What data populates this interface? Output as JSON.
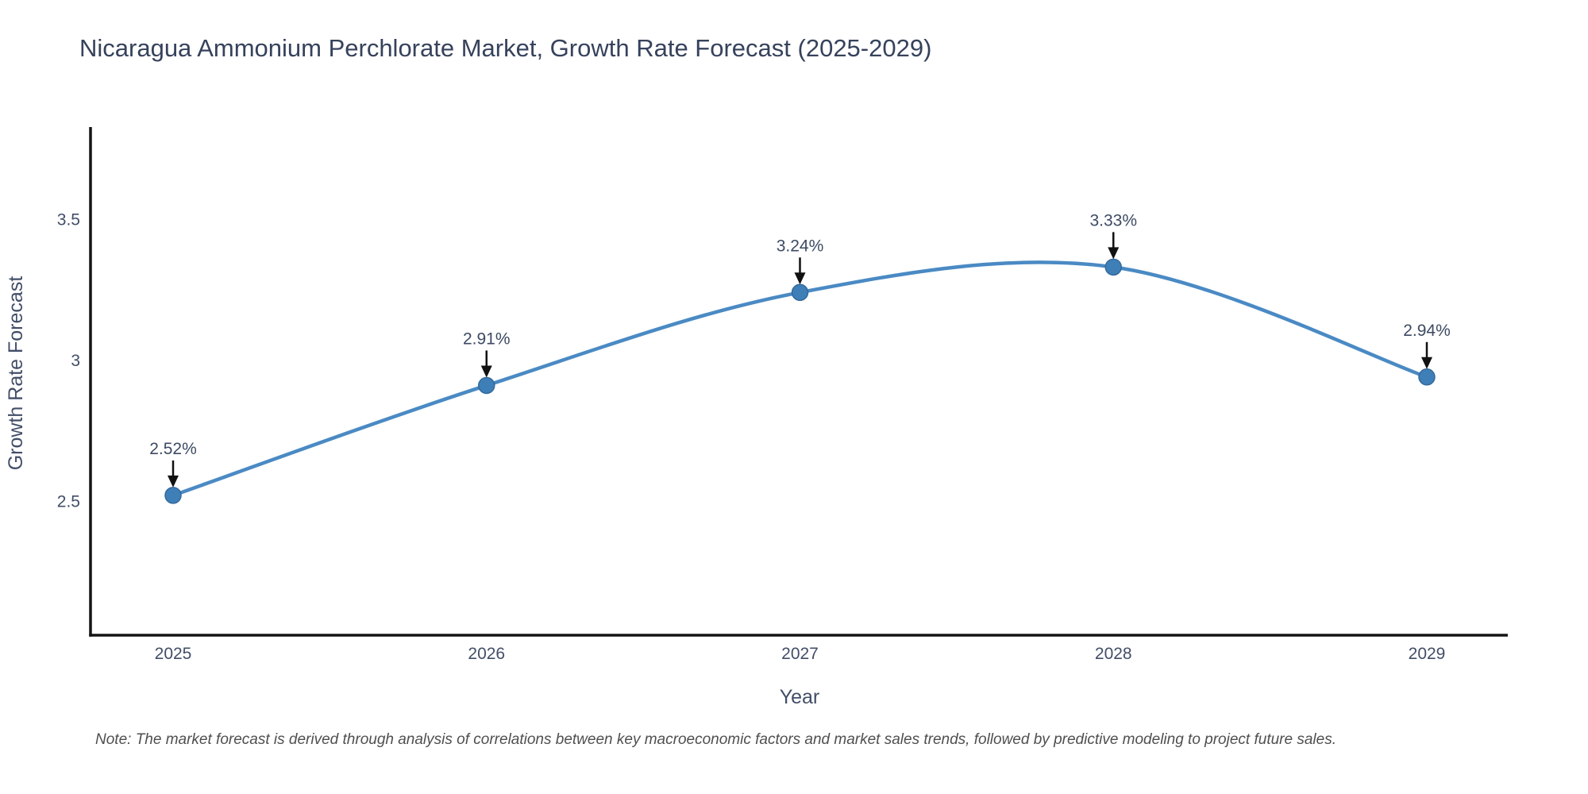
{
  "page": {
    "background": "#ffffff"
  },
  "colors": {
    "line": "#4a8ac4",
    "marker_fill": "#3f7fb8",
    "marker_edge": "#33699c",
    "arrow": "#111111",
    "axis": "#141414",
    "title_text": "#36425c",
    "tick_text": "#424e68",
    "label_text": "#3d4a63",
    "note_text": "#4f4f4f"
  },
  "chart_data": {
    "type": "line",
    "title": "Nicaragua Ammonium Perchlorate Market, Growth Rate Forecast (2025-2029)",
    "xlabel": "Year",
    "ylabel": "Growth Rate Forecast",
    "categories": [
      "2025",
      "2026",
      "2027",
      "2028",
      "2029"
    ],
    "values": [
      2.52,
      2.91,
      3.24,
      3.33,
      2.94
    ],
    "point_labels": [
      "2.52%",
      "2.91%",
      "3.24%",
      "3.33%",
      "2.94%"
    ],
    "series_name": "Growth Rate Forecast",
    "y_ticks": [
      "2.5",
      "3",
      "3.5"
    ],
    "ylim": [
      2.1,
      3.85
    ],
    "line_shape": "spline",
    "grid": false,
    "legend_position": "none",
    "note": "Note: The market forecast is derived through analysis of correlations between key macroeconomic factors and market sales trends, followed by predictive modeling to project future sales."
  }
}
